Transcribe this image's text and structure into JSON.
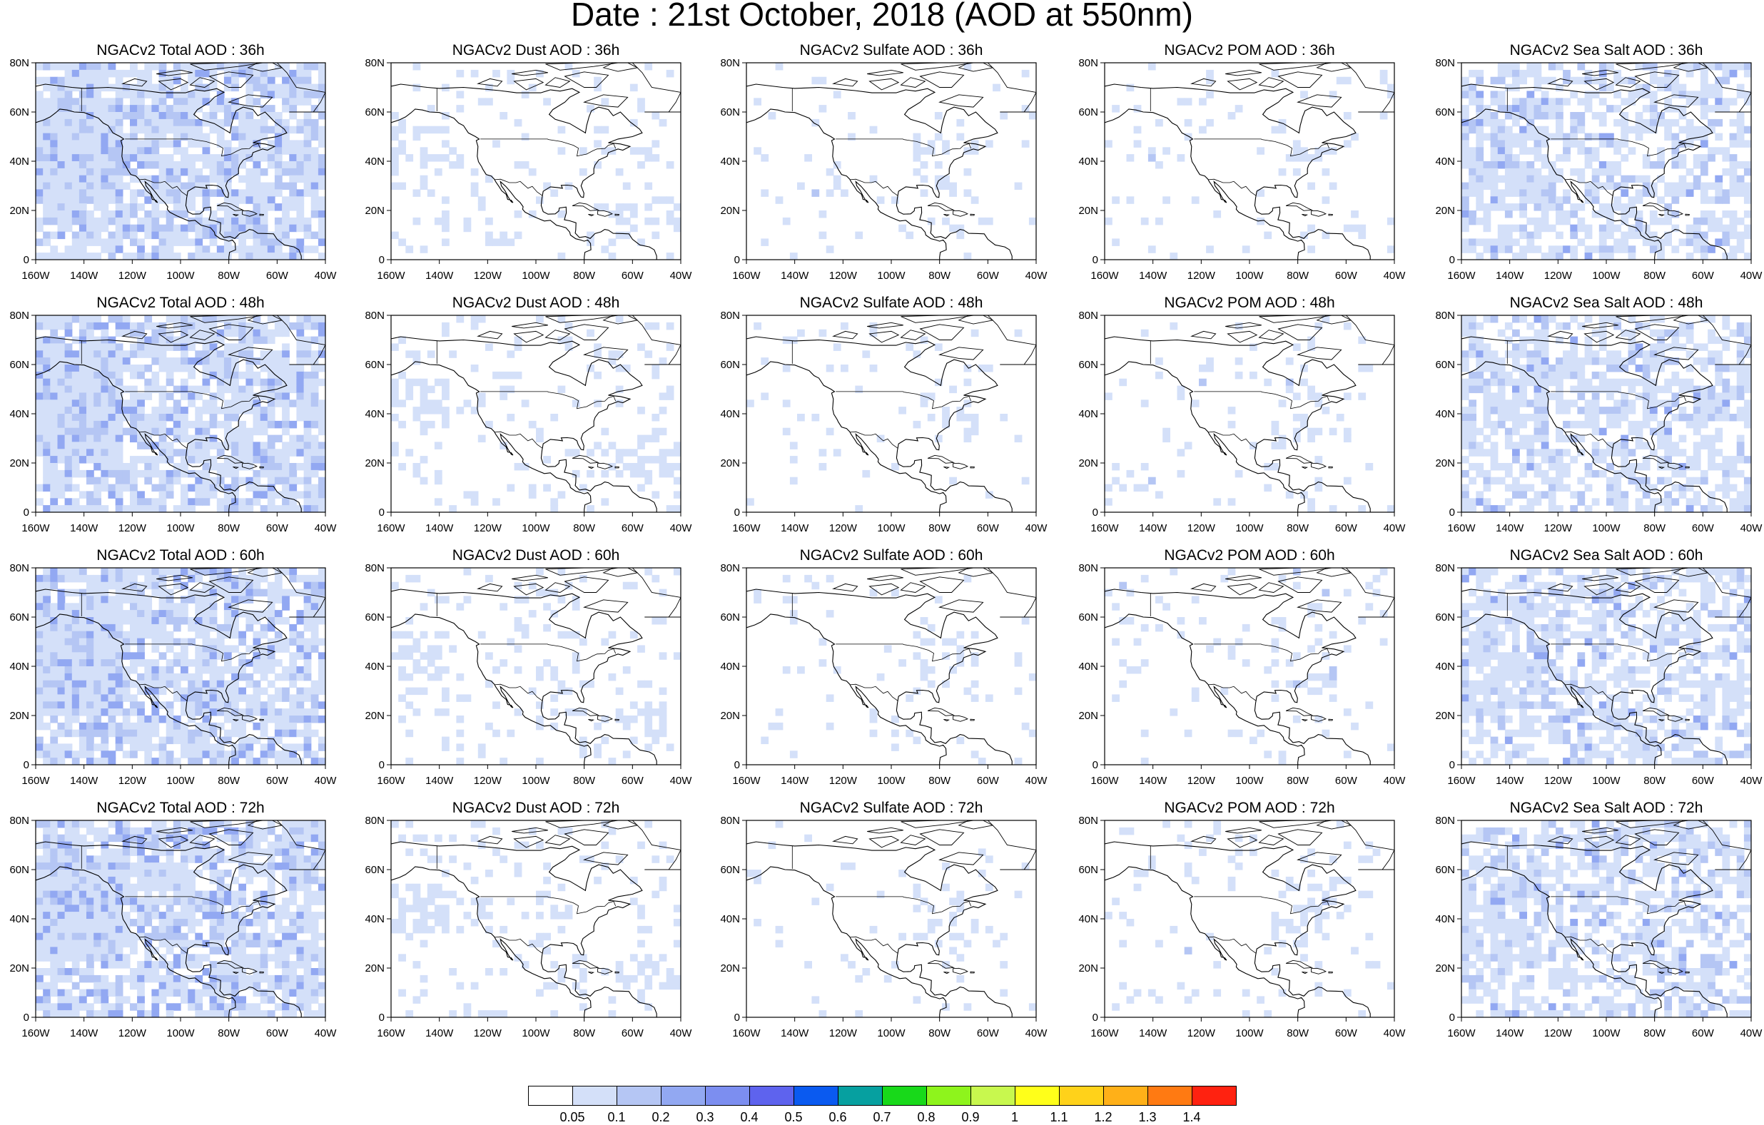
{
  "title": "Date : 21st October, 2018 (AOD at 550nm)",
  "rows": [
    "36h",
    "48h",
    "60h",
    "72h"
  ],
  "columns": [
    "Total",
    "Dust",
    "Sulfate",
    "POM",
    "Sea Salt"
  ],
  "panels": [
    [
      "NGACv2 Total AOD : 36h",
      "NGACv2 Dust AOD : 36h",
      "NGACv2 Sulfate AOD : 36h",
      "NGACv2 POM AOD : 36h",
      "NGACv2 Sea Salt AOD : 36h"
    ],
    [
      "NGACv2 Total AOD : 48h",
      "NGACv2 Dust AOD : 48h",
      "NGACv2 Sulfate AOD : 48h",
      "NGACv2 POM AOD : 48h",
      "NGACv2 Sea Salt AOD : 48h"
    ],
    [
      "NGACv2 Total AOD : 60h",
      "NGACv2 Dust AOD : 60h",
      "NGACv2 Sulfate AOD : 60h",
      "NGACv2 POM AOD : 60h",
      "NGACv2 Sea Salt AOD : 60h"
    ],
    [
      "NGACv2 Total AOD : 72h",
      "NGACv2 Dust AOD : 72h",
      "NGACv2 Sulfate AOD : 72h",
      "NGACv2 POM AOD : 72h",
      "NGACv2 Sea Salt  AOD : 72h"
    ]
  ],
  "lat_ticks": [
    "0",
    "20N",
    "40N",
    "60N",
    "80N"
  ],
  "lon_ticks": [
    "160W",
    "140W",
    "120W",
    "100W",
    "80W",
    "60W",
    "40W"
  ],
  "colorbar": {
    "colors": [
      "#ffffff",
      "#d4e0f9",
      "#b5c6f4",
      "#92a8f2",
      "#7c8ef0",
      "#5e63ee",
      "#0a5af0",
      "#06a0a0",
      "#18d91a",
      "#8ef41c",
      "#c8f84e",
      "#ffff1a",
      "#ffd21a",
      "#ffb018",
      "#ff7a12",
      "#ff2210"
    ],
    "labels": [
      "0.05",
      "0.1",
      "0.2",
      "0.3",
      "0.4",
      "0.5",
      "0.6",
      "0.7",
      "0.8",
      "0.9",
      "1",
      "1.1",
      "1.2",
      "1.3",
      "1.4"
    ]
  },
  "map_colors": {
    "light": "#d4e0f9",
    "mid": "#b5c6f4",
    "strong": "#92a8f2",
    "land": "#000000"
  }
}
